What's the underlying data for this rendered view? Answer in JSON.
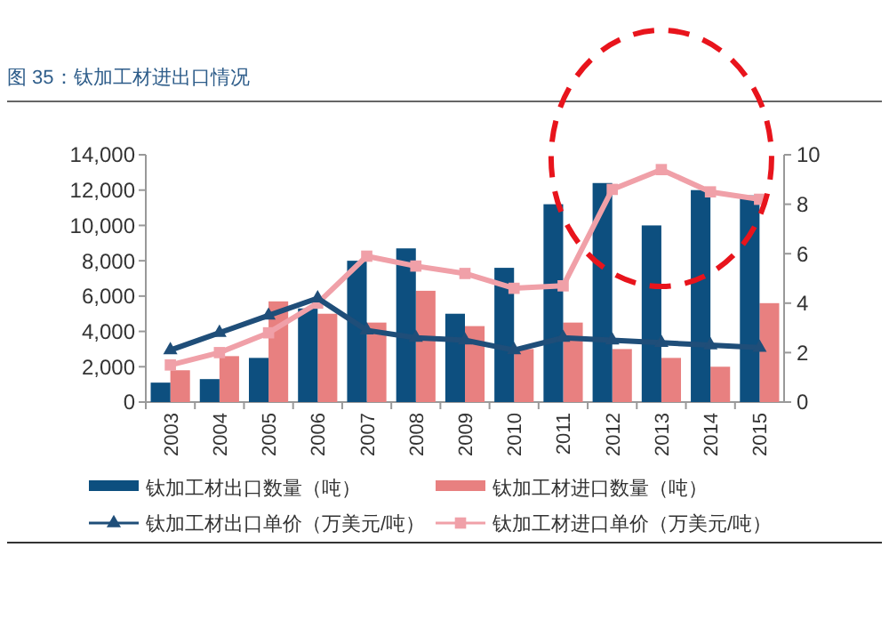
{
  "chart_data": {
    "type": "bar",
    "title": "图 35：钛加工材进出口情况",
    "categories": [
      "2003",
      "2004",
      "2005",
      "2006",
      "2007",
      "2008",
      "2009",
      "2010",
      "2011",
      "2012",
      "2013",
      "2014",
      "2015"
    ],
    "series": [
      {
        "name": "钛加工材出口数量（吨）",
        "color": "#0d4f7f",
        "values": [
          1100,
          1300,
          2500,
          5300,
          8000,
          8700,
          5000,
          7600,
          11200,
          12400,
          10000,
          12000,
          11700
        ]
      },
      {
        "name": "钛加工材进口数量（吨）",
        "color": "#e88080",
        "values": [
          1800,
          2600,
          5700,
          5000,
          4500,
          6300,
          4300,
          3000,
          4500,
          3000,
          2500,
          2000,
          5600
        ]
      },
      {
        "name": "钛加工材出口单价（万美元/吨）",
        "type": "line",
        "axis": "y2",
        "marker": "triangle",
        "color": "#1f4e79",
        "values": [
          2.1,
          2.8,
          3.5,
          4.2,
          2.9,
          2.6,
          2.5,
          2.1,
          2.6,
          2.5,
          2.4,
          2.3,
          2.2
        ]
      },
      {
        "name": "钛加工材进口单价（万美元/吨）",
        "type": "line",
        "axis": "y2",
        "marker": "square",
        "color": "#f0a0a8",
        "values": [
          1.5,
          2.0,
          2.8,
          4.0,
          5.9,
          5.5,
          5.2,
          4.6,
          4.7,
          8.6,
          9.4,
          8.5,
          8.2
        ]
      }
    ],
    "ylim": [
      0,
      14000
    ],
    "yticks": [
      0,
      {
        "value": 2000,
        "label": "2,000"
      },
      {
        "value": 4000,
        "label": "4,000"
      },
      {
        "value": 6000,
        "label": "6,000"
      },
      {
        "value": 8000,
        "label": "8,000"
      },
      {
        "value": 10000,
        "label": "10,000"
      },
      {
        "value": 12000,
        "label": "12,000"
      },
      {
        "value": 14000,
        "label": "14,000"
      }
    ],
    "y2lim": [
      0,
      10
    ],
    "y2ticks": [
      0,
      2,
      4,
      6,
      8,
      10
    ],
    "legend": "bottom"
  }
}
